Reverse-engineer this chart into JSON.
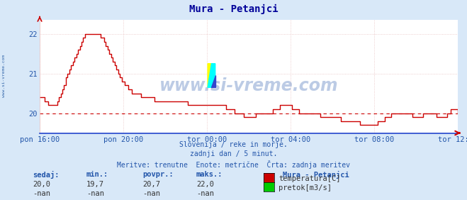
{
  "title": "Mura - Petanjci",
  "bg_color": "#d8e8f8",
  "plot_bg_color": "#ffffff",
  "grid_color": "#e8c0c0",
  "line_color": "#cc0000",
  "dashed_line_color": "#cc0000",
  "dashed_line_value": 20.0,
  "x_labels": [
    "pon 16:00",
    "pon 20:00",
    "tor 00:00",
    "tor 04:00",
    "tor 08:00",
    "tor 12:00"
  ],
  "x_ticks_norm": [
    0.0,
    0.2,
    0.4,
    0.6,
    0.8,
    1.0
  ],
  "y_ticks": [
    20,
    21,
    22
  ],
  "ylim": [
    19.5,
    22.35
  ],
  "subtitle_lines": [
    "Slovenija / reke in morje.",
    "zadnji dan / 5 minut.",
    "Meritve: trenutne  Enote: metrične  Črta: zadnja meritev"
  ],
  "footer_labels": [
    "sedaj:",
    "min.:",
    "povpr.:",
    "maks.:"
  ],
  "footer_values_temp": [
    "20,0",
    "19,7",
    "20,7",
    "22,0"
  ],
  "footer_values_flow": [
    "-nan",
    "-nan",
    "-nan",
    "-nan"
  ],
  "legend_title": "Mura - Petanjci",
  "legend_items": [
    {
      "label": "temperatura[C]",
      "color": "#cc0000"
    },
    {
      "label": "pretok[m3/s]",
      "color": "#00cc00"
    }
  ],
  "watermark": "www.si-vreme.com",
  "watermark_color": "#2255aa",
  "sidebar_text": "www.si-vreme.com",
  "sidebar_color": "#3366aa",
  "arrow_color": "#cc0000",
  "x_axis_color": "#2244cc",
  "title_color": "#000099",
  "text_color": "#2255aa",
  "label_color": "#2255aa",
  "temp_data": [
    20.4,
    20.4,
    20.4,
    20.3,
    20.3,
    20.2,
    20.2,
    20.2,
    20.2,
    20.2,
    20.3,
    20.4,
    20.5,
    20.6,
    20.7,
    20.9,
    21.0,
    21.1,
    21.2,
    21.3,
    21.4,
    21.5,
    21.6,
    21.7,
    21.8,
    21.9,
    22.0,
    22.0,
    22.0,
    22.0,
    22.0,
    22.0,
    22.0,
    22.0,
    22.0,
    21.9,
    21.9,
    21.8,
    21.7,
    21.6,
    21.5,
    21.4,
    21.3,
    21.2,
    21.1,
    21.0,
    20.9,
    20.8,
    20.8,
    20.7,
    20.7,
    20.6,
    20.6,
    20.5,
    20.5,
    20.5,
    20.5,
    20.5,
    20.4,
    20.4,
    20.4,
    20.4,
    20.4,
    20.4,
    20.4,
    20.4,
    20.3,
    20.3,
    20.3,
    20.3,
    20.3,
    20.3,
    20.3,
    20.3,
    20.3,
    20.3,
    20.3,
    20.3,
    20.3,
    20.3,
    20.3,
    20.3,
    20.3,
    20.3,
    20.3,
    20.2,
    20.2,
    20.2,
    20.2,
    20.2,
    20.2,
    20.2,
    20.2,
    20.2,
    20.2,
    20.2,
    20.2,
    20.2,
    20.2,
    20.2,
    20.2,
    20.2,
    20.2,
    20.2,
    20.2,
    20.2,
    20.2,
    20.1,
    20.1,
    20.1,
    20.1,
    20.1,
    20.0,
    20.0,
    20.0,
    20.0,
    20.0,
    19.9,
    19.9,
    19.9,
    19.9,
    19.9,
    19.9,
    19.9,
    20.0,
    20.0,
    20.0,
    20.0,
    20.0,
    20.0,
    20.0,
    20.0,
    20.0,
    20.0,
    20.1,
    20.1,
    20.1,
    20.1,
    20.2,
    20.2,
    20.2,
    20.2,
    20.2,
    20.2,
    20.2,
    20.1,
    20.1,
    20.1,
    20.1,
    20.0,
    20.0,
    20.0,
    20.0,
    20.0,
    20.0,
    20.0,
    20.0,
    20.0,
    20.0,
    20.0,
    20.0,
    19.9,
    19.9,
    19.9,
    19.9,
    19.9,
    19.9,
    19.9,
    19.9,
    19.9,
    19.9,
    19.9,
    19.9,
    19.8,
    19.8,
    19.8,
    19.8,
    19.8,
    19.8,
    19.8,
    19.8,
    19.8,
    19.8,
    19.8,
    19.7,
    19.7,
    19.7,
    19.7,
    19.7,
    19.7,
    19.7,
    19.7,
    19.7,
    19.7,
    19.8,
    19.8,
    19.8,
    19.8,
    19.9,
    19.9,
    19.9,
    19.9,
    20.0,
    20.0,
    20.0,
    20.0,
    20.0,
    20.0,
    20.0,
    20.0,
    20.0,
    20.0,
    20.0,
    20.0,
    19.9,
    19.9,
    19.9,
    19.9,
    19.9,
    19.9,
    20.0,
    20.0,
    20.0,
    20.0,
    20.0,
    20.0,
    20.0,
    20.0,
    19.9,
    19.9,
    19.9,
    19.9,
    19.9,
    19.9,
    20.0,
    20.0,
    20.1,
    20.1,
    20.1,
    20.1,
    20.0
  ]
}
